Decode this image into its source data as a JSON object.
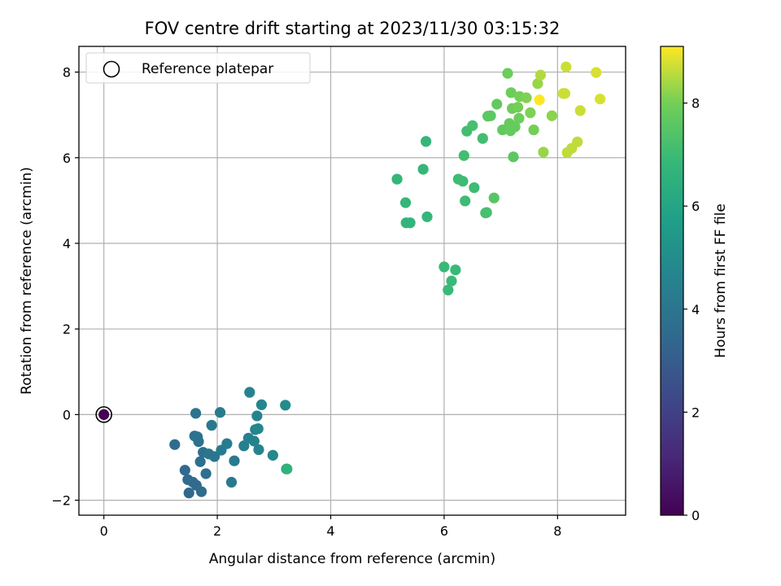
{
  "chart_data": {
    "type": "scatter",
    "title": "FOV centre drift starting at 2023/11/30 03:15:32",
    "xlabel": "Angular distance from reference (arcmin)",
    "ylabel": "Rotation from reference (arcmin)",
    "xlim": [
      -0.44,
      9.2
    ],
    "ylim": [
      -2.35,
      8.6
    ],
    "xticks": [
      0,
      2,
      4,
      6,
      8
    ],
    "yticks": [
      -2,
      0,
      2,
      4,
      6,
      8
    ],
    "xtick_labels": [
      "0",
      "2",
      "4",
      "6",
      "8"
    ],
    "ytick_labels": [
      "−2",
      "0",
      "2",
      "4",
      "6",
      "8"
    ],
    "grid": true,
    "colormap": "viridis",
    "colorbar": {
      "label": "Hours from first FF file",
      "range": [
        0,
        9.1
      ],
      "ticks": [
        0,
        2,
        4,
        6,
        8
      ],
      "tick_labels": [
        "0",
        "2",
        "4",
        "6",
        "8"
      ]
    },
    "legend": {
      "placement": "top-left",
      "entries": [
        "Reference platepar"
      ]
    },
    "reference_point": {
      "x": 0,
      "y": 0,
      "hours": 0
    },
    "points": [
      {
        "x": 1.25,
        "y": -0.7,
        "h": 3.6
      },
      {
        "x": 1.43,
        "y": -1.3,
        "h": 3.5
      },
      {
        "x": 1.48,
        "y": -1.52,
        "h": 3.5
      },
      {
        "x": 1.5,
        "y": -1.83,
        "h": 3.4
      },
      {
        "x": 1.57,
        "y": -1.58,
        "h": 3.6
      },
      {
        "x": 1.6,
        "y": -0.5,
        "h": 3.8
      },
      {
        "x": 1.62,
        "y": 0.03,
        "h": 3.9
      },
      {
        "x": 1.63,
        "y": -1.65,
        "h": 3.5
      },
      {
        "x": 1.65,
        "y": -0.52,
        "h": 3.9
      },
      {
        "x": 1.67,
        "y": -0.63,
        "h": 3.8
      },
      {
        "x": 1.7,
        "y": -1.1,
        "h": 3.7
      },
      {
        "x": 1.72,
        "y": -1.8,
        "h": 3.6
      },
      {
        "x": 1.75,
        "y": -0.88,
        "h": 3.8
      },
      {
        "x": 1.8,
        "y": -1.38,
        "h": 3.7
      },
      {
        "x": 1.85,
        "y": -0.92,
        "h": 4.0
      },
      {
        "x": 1.9,
        "y": -0.25,
        "h": 4.1
      },
      {
        "x": 1.95,
        "y": -0.98,
        "h": 4.0
      },
      {
        "x": 2.05,
        "y": 0.05,
        "h": 4.3
      },
      {
        "x": 2.07,
        "y": -0.83,
        "h": 4.2
      },
      {
        "x": 2.17,
        "y": -0.68,
        "h": 4.3
      },
      {
        "x": 2.25,
        "y": -1.58,
        "h": 4.1
      },
      {
        "x": 2.3,
        "y": -1.08,
        "h": 4.2
      },
      {
        "x": 2.47,
        "y": -0.73,
        "h": 4.4
      },
      {
        "x": 2.55,
        "y": -0.55,
        "h": 4.5
      },
      {
        "x": 2.57,
        "y": 0.52,
        "h": 4.6
      },
      {
        "x": 2.65,
        "y": -0.62,
        "h": 4.5
      },
      {
        "x": 2.67,
        "y": -0.35,
        "h": 4.6
      },
      {
        "x": 2.7,
        "y": -0.03,
        "h": 4.6
      },
      {
        "x": 2.72,
        "y": -0.33,
        "h": 4.7
      },
      {
        "x": 2.73,
        "y": -0.82,
        "h": 4.6
      },
      {
        "x": 2.78,
        "y": 0.23,
        "h": 4.7
      },
      {
        "x": 2.98,
        "y": -0.95,
        "h": 4.8
      },
      {
        "x": 3.2,
        "y": 0.22,
        "h": 4.9
      },
      {
        "x": 3.22,
        "y": -1.27,
        "h": 4.9
      },
      {
        "x": 3.23,
        "y": -1.27,
        "h": 6.6
      },
      {
        "x": 5.17,
        "y": 5.5,
        "h": 6.8
      },
      {
        "x": 5.32,
        "y": 4.95,
        "h": 6.8
      },
      {
        "x": 5.33,
        "y": 4.48,
        "h": 6.7
      },
      {
        "x": 5.4,
        "y": 4.48,
        "h": 6.7
      },
      {
        "x": 5.63,
        "y": 5.73,
        "h": 6.8
      },
      {
        "x": 5.68,
        "y": 6.38,
        "h": 6.8
      },
      {
        "x": 5.7,
        "y": 4.62,
        "h": 6.8
      },
      {
        "x": 6.0,
        "y": 3.45,
        "h": 6.9
      },
      {
        "x": 6.07,
        "y": 2.91,
        "h": 6.9
      },
      {
        "x": 6.13,
        "y": 3.12,
        "h": 6.9
      },
      {
        "x": 6.2,
        "y": 3.38,
        "h": 6.9
      },
      {
        "x": 6.25,
        "y": 5.5,
        "h": 7.0
      },
      {
        "x": 6.33,
        "y": 5.45,
        "h": 7.0
      },
      {
        "x": 6.35,
        "y": 6.05,
        "h": 7.1
      },
      {
        "x": 6.37,
        "y": 4.99,
        "h": 7.0
      },
      {
        "x": 6.4,
        "y": 6.62,
        "h": 7.1
      },
      {
        "x": 6.5,
        "y": 6.75,
        "h": 7.2
      },
      {
        "x": 6.53,
        "y": 5.3,
        "h": 7.0
      },
      {
        "x": 6.68,
        "y": 6.45,
        "h": 7.1
      },
      {
        "x": 6.73,
        "y": 4.71,
        "h": 7.2
      },
      {
        "x": 6.75,
        "y": 4.72,
        "h": 7.2
      },
      {
        "x": 6.77,
        "y": 6.97,
        "h": 7.6
      },
      {
        "x": 6.82,
        "y": 6.98,
        "h": 7.6
      },
      {
        "x": 6.88,
        "y": 5.06,
        "h": 7.5
      },
      {
        "x": 6.93,
        "y": 7.25,
        "h": 7.7
      },
      {
        "x": 7.03,
        "y": 6.65,
        "h": 7.7
      },
      {
        "x": 7.12,
        "y": 7.97,
        "h": 7.9
      },
      {
        "x": 7.15,
        "y": 6.8,
        "h": 7.8
      },
      {
        "x": 7.17,
        "y": 6.63,
        "h": 7.8
      },
      {
        "x": 7.18,
        "y": 7.52,
        "h": 7.9
      },
      {
        "x": 7.2,
        "y": 7.15,
        "h": 7.9
      },
      {
        "x": 7.22,
        "y": 6.02,
        "h": 7.6
      },
      {
        "x": 7.25,
        "y": 6.72,
        "h": 7.8
      },
      {
        "x": 7.3,
        "y": 7.18,
        "h": 8.0
      },
      {
        "x": 7.32,
        "y": 6.92,
        "h": 7.9
      },
      {
        "x": 7.33,
        "y": 7.43,
        "h": 8.0
      },
      {
        "x": 7.45,
        "y": 7.4,
        "h": 8.1
      },
      {
        "x": 7.52,
        "y": 7.05,
        "h": 8.1
      },
      {
        "x": 7.58,
        "y": 6.65,
        "h": 8.0
      },
      {
        "x": 7.65,
        "y": 7.73,
        "h": 8.3
      },
      {
        "x": 7.68,
        "y": 7.35,
        "h": 9.1
      },
      {
        "x": 7.7,
        "y": 7.93,
        "h": 8.5
      },
      {
        "x": 7.75,
        "y": 6.13,
        "h": 8.3
      },
      {
        "x": 7.9,
        "y": 6.98,
        "h": 8.2
      },
      {
        "x": 8.1,
        "y": 7.5,
        "h": 8.7
      },
      {
        "x": 8.13,
        "y": 7.5,
        "h": 8.7
      },
      {
        "x": 8.15,
        "y": 8.12,
        "h": 8.7
      },
      {
        "x": 8.17,
        "y": 6.12,
        "h": 8.6
      },
      {
        "x": 8.25,
        "y": 6.22,
        "h": 8.6
      },
      {
        "x": 8.35,
        "y": 6.37,
        "h": 8.6
      },
      {
        "x": 8.4,
        "y": 7.1,
        "h": 8.7
      },
      {
        "x": 8.68,
        "y": 7.99,
        "h": 8.8
      },
      {
        "x": 8.75,
        "y": 7.37,
        "h": 8.8
      }
    ]
  }
}
